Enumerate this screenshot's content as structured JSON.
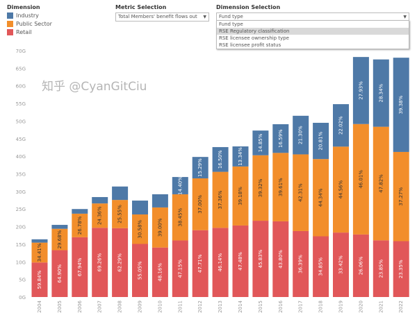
{
  "legend": {
    "title": "Dimension",
    "items": [
      {
        "label": "Industry",
        "color": "#4e79a7"
      },
      {
        "label": "Public Sector",
        "color": "#f28e2b"
      },
      {
        "label": "Retail",
        "color": "#e15759"
      }
    ]
  },
  "metric": {
    "label": "Metric Selection",
    "value": "Total Members' benefit flows out"
  },
  "dimension": {
    "label": "Dimension Selection",
    "value": "Fund type",
    "options": [
      "Fund type",
      "RSE Regulatory classification",
      "RSE licensee ownership type",
      "RSE licensee profit status"
    ],
    "highlighted": "RSE Regulatory classification"
  },
  "watermark": "知乎 @CyanGitCiu",
  "chart_data": {
    "type": "bar",
    "stacked": true,
    "categories": [
      "2004",
      "2005",
      "2006",
      "2007",
      "2008",
      "2009",
      "2010",
      "2011",
      "2012",
      "2013",
      "2014",
      "2015",
      "2016",
      "2017",
      "2018",
      "2019",
      "2020",
      "2021",
      "2022"
    ],
    "ylim": [
      0,
      70
    ],
    "yticks": [
      "0G",
      "5G",
      "10G",
      "15G",
      "20G",
      "25G",
      "30G",
      "35G",
      "40G",
      "45G",
      "50G",
      "55G",
      "60G",
      "65G",
      "70G"
    ],
    "totals": [
      16.4,
      20.5,
      25.0,
      28.4,
      31.4,
      27.4,
      29.2,
      34.1,
      39.8,
      42.6,
      42.8,
      47.3,
      49.1,
      51.5,
      49.5,
      54.8,
      68.2,
      67.5,
      68.0
    ],
    "series": [
      {
        "name": "Retail",
        "color": "#e15759",
        "share": [
          59.84,
          64.9,
          67.94,
          69.26,
          62.29,
          55.05,
          48.16,
          47.15,
          47.71,
          46.14,
          47.48,
          45.83,
          43.8,
          36.39,
          34.85,
          33.42,
          26.06,
          23.85,
          23.35
        ],
        "labels": [
          "59.84%",
          "64.90%",
          "67.94%",
          "69.26%",
          "62.29%",
          "55.05%",
          "48.16%",
          "47.15%",
          "47.71%",
          "46.14%",
          "47.48%",
          "45.83%",
          "43.80%",
          "36.39%",
          "34.85%",
          "33.42%",
          "26.06%",
          "23.85%",
          "23.35%"
        ]
      },
      {
        "name": "Public Sector",
        "color": "#f28e2b",
        "share": [
          34.41,
          29.68,
          26.78,
          24.36,
          25.55,
          30.58,
          39.0,
          38.45,
          37.0,
          37.36,
          39.18,
          39.32,
          39.61,
          42.31,
          44.34,
          44.56,
          46.01,
          47.82,
          37.27
        ],
        "labels": [
          "34.41%",
          "29.68%",
          "26.78%",
          "24.36%",
          "25.55%",
          "30.58%",
          "39.00%",
          "38.45%",
          "37.00%",
          "37.36%",
          "39.18%",
          "39.32%",
          "39.61%",
          "42.31%",
          "44.34%",
          "44.56%",
          "46.01%",
          "47.82%",
          "37.27%"
        ]
      },
      {
        "name": "Industry",
        "color": "#4e79a7",
        "share": [
          5.75,
          5.42,
          5.28,
          6.38,
          12.16,
          14.37,
          12.84,
          14.4,
          15.29,
          16.5,
          13.34,
          14.85,
          16.59,
          21.3,
          20.81,
          22.02,
          27.93,
          28.34,
          39.38
        ],
        "labels": [
          null,
          null,
          null,
          null,
          null,
          null,
          null,
          "14.40%",
          "15.29%",
          "16.50%",
          "13.34%",
          "14.85%",
          "16.59%",
          "21.30%",
          "20.81%",
          "22.02%",
          "27.93%",
          "28.34%",
          "39.38%"
        ]
      }
    ]
  }
}
